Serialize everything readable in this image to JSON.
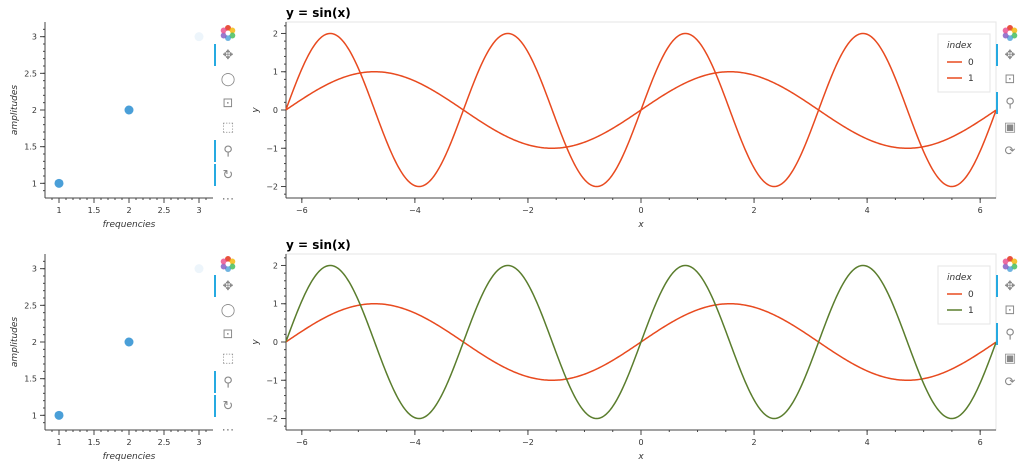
{
  "colors": {
    "scatter": "#4a9fd8",
    "series0": "#e84a1f",
    "series1_top": "#e84a1f",
    "series1_bottom": "#5a7d2d",
    "active_tool": "#26aae1"
  },
  "icons": [
    "bokeh-logo-icon",
    "pan-icon",
    "lasso-icon",
    "box-zoom-icon",
    "box-select-icon",
    "wheel-zoom-icon",
    "wheel-rotate-icon",
    "save-icon",
    "reset-icon",
    "more-icon"
  ],
  "chart_data": [
    {
      "type": "scatter",
      "title": "",
      "xlabel": "frequencies",
      "ylabel": "amplitudes",
      "x": [
        1,
        2,
        3
      ],
      "y": [
        1,
        2,
        3
      ],
      "point_alpha": [
        1,
        1,
        0.1
      ],
      "xlim": [
        0.8,
        3.2
      ],
      "ylim": [
        0.8,
        3.2
      ],
      "xticks": [
        "1",
        "1.5",
        "2",
        "2.5",
        "3"
      ],
      "yticks": [
        "1",
        "1.5",
        "2",
        "2.5",
        "3"
      ]
    },
    {
      "type": "line",
      "title": "y = sin(x)",
      "xlabel": "x",
      "ylabel": "y",
      "xlim": [
        -6.28,
        6.28
      ],
      "ylim": [
        -2.3,
        2.3
      ],
      "xticks": [
        "−6",
        "−4",
        "−2",
        "0",
        "2",
        "4",
        "6"
      ],
      "yticks": [
        "−2",
        "−1",
        "0",
        "1",
        "2"
      ],
      "legend": {
        "title": "index",
        "position": "top-right"
      },
      "series": [
        {
          "name": "0",
          "function": "sin(x)",
          "amplitude": 1,
          "frequency": 1
        },
        {
          "name": "1",
          "function": "2*sin(2x)",
          "amplitude": 2,
          "frequency": 2
        }
      ]
    },
    {
      "type": "scatter",
      "title": "",
      "xlabel": "frequencies",
      "ylabel": "amplitudes",
      "x": [
        1,
        2,
        3
      ],
      "y": [
        1,
        2,
        3
      ],
      "point_alpha": [
        1,
        1,
        0.1
      ],
      "xlim": [
        0.8,
        3.2
      ],
      "ylim": [
        0.8,
        3.2
      ],
      "xticks": [
        "1",
        "1.5",
        "2",
        "2.5",
        "3"
      ],
      "yticks": [
        "1",
        "1.5",
        "2",
        "2.5",
        "3"
      ]
    },
    {
      "type": "line",
      "title": "y = sin(x)",
      "xlabel": "x",
      "ylabel": "y",
      "xlim": [
        -6.28,
        6.28
      ],
      "ylim": [
        -2.3,
        2.3
      ],
      "xticks": [
        "−6",
        "−4",
        "−2",
        "0",
        "2",
        "4",
        "6"
      ],
      "yticks": [
        "−2",
        "−1",
        "0",
        "1",
        "2"
      ],
      "legend": {
        "title": "index",
        "position": "top-right"
      },
      "series": [
        {
          "name": "0",
          "function": "sin(x)",
          "amplitude": 1,
          "frequency": 1
        },
        {
          "name": "1",
          "function": "2*sin(2x)",
          "amplitude": 2,
          "frequency": 2
        }
      ]
    }
  ]
}
